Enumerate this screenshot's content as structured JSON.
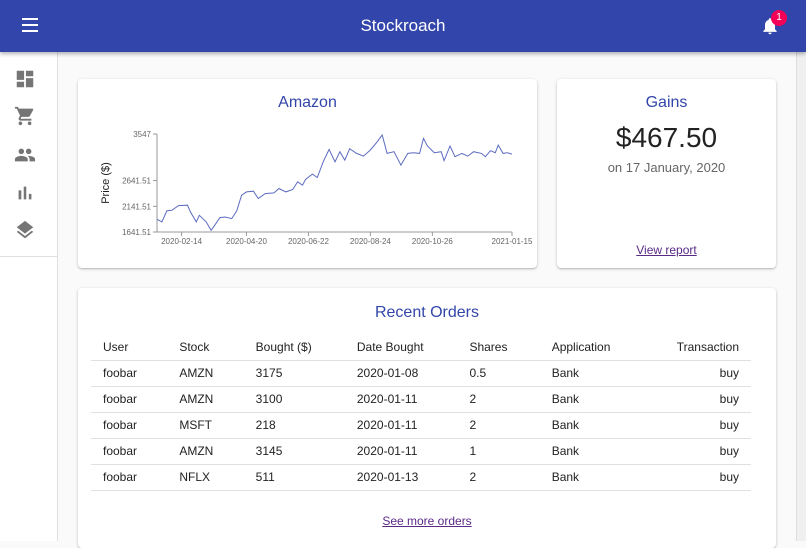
{
  "app": {
    "title": "Stockroach",
    "notification_count": "1",
    "accent": "#3245aa",
    "badge_color": "#f50057"
  },
  "sidebar": {
    "items": [
      {
        "icon": "dashboard-icon"
      },
      {
        "icon": "shopping-cart-icon"
      },
      {
        "icon": "people-icon"
      },
      {
        "icon": "bar-chart-icon"
      },
      {
        "icon": "layers-icon"
      }
    ]
  },
  "chart_card": {
    "title": "Amazon"
  },
  "gains": {
    "title": "Gains",
    "value": "$467.50",
    "date": "on 17 January, 2020",
    "link": "View report"
  },
  "orders": {
    "title": "Recent Orders",
    "columns": [
      "User",
      "Stock",
      "Bought ($)",
      "Date Bought",
      "Shares",
      "Application",
      "Transaction"
    ],
    "rows": [
      [
        "foobar",
        "AMZN",
        "3175",
        "2020-01-08",
        "0.5",
        "Bank",
        "buy"
      ],
      [
        "foobar",
        "AMZN",
        "3100",
        "2020-01-11",
        "2",
        "Bank",
        "buy"
      ],
      [
        "foobar",
        "MSFT",
        "218",
        "2020-01-11",
        "2",
        "Bank",
        "buy"
      ],
      [
        "foobar",
        "AMZN",
        "3145",
        "2020-01-11",
        "1",
        "Bank",
        "buy"
      ],
      [
        "foobar",
        "NFLX",
        "511",
        "2020-01-13",
        "2",
        "Bank",
        "buy"
      ]
    ],
    "link": "See more orders"
  },
  "chart_data": {
    "type": "line",
    "title": "Amazon",
    "xlabel": "",
    "ylabel": "Price ($)",
    "ylim": [
      1641.51,
      3547
    ],
    "yticks": [
      "1641.51",
      "2141.51",
      "2641.51",
      "3547"
    ],
    "xticks": [
      "2020-02-14",
      "2020-04-20",
      "2020-06-22",
      "2020-08-24",
      "2020-10-26",
      "2021-01-15"
    ],
    "color": "#5c6bc0",
    "grid": false,
    "x": [
      "2020-01-20",
      "2020-01-25",
      "2020-01-30",
      "2020-02-04",
      "2020-02-11",
      "2020-02-20",
      "2020-02-23",
      "2020-02-29",
      "2020-03-03",
      "2020-03-10",
      "2020-03-15",
      "2020-03-18",
      "2020-03-24",
      "2020-03-29",
      "2020-04-05",
      "2020-04-10",
      "2020-04-15",
      "2020-04-20",
      "2020-04-27",
      "2020-05-02",
      "2020-05-09",
      "2020-05-18",
      "2020-05-23",
      "2020-05-30",
      "2020-06-06",
      "2020-06-11",
      "2020-06-16",
      "2020-06-19",
      "2020-06-26",
      "2020-07-01",
      "2020-07-07",
      "2020-07-13",
      "2020-07-19",
      "2020-07-24",
      "2020-07-29",
      "2020-08-03",
      "2020-08-10",
      "2020-08-17",
      "2020-08-24",
      "2020-08-31",
      "2020-09-05",
      "2020-09-10",
      "2020-09-17",
      "2020-09-24",
      "2020-10-01",
      "2020-10-07",
      "2020-10-13",
      "2020-10-17",
      "2020-10-21",
      "2020-10-28",
      "2020-11-04",
      "2020-11-07",
      "2020-11-13",
      "2020-11-18",
      "2020-11-25",
      "2020-12-01",
      "2020-12-07",
      "2020-12-15",
      "2020-12-19",
      "2020-12-24",
      "2020-12-29",
      "2021-01-01",
      "2021-01-06",
      "2021-01-10",
      "2021-01-15"
    ],
    "y": [
      1889,
      1837,
      2051,
      2064,
      2155,
      2162,
      2032,
      1837,
      1967,
      1837,
      1674,
      1752,
      1921,
      1934,
      1902,
      2051,
      2357,
      2422,
      2435,
      2292,
      2389,
      2402,
      2487,
      2422,
      2467,
      2617,
      2552,
      2662,
      2767,
      2702,
      3007,
      3248,
      3007,
      3202,
      3040,
      3261,
      3170,
      3118,
      3235,
      3397,
      3527,
      3170,
      3202,
      2942,
      3170,
      3183,
      3170,
      3462,
      3313,
      3183,
      3202,
      3027,
      3313,
      3105,
      3170,
      3118,
      3202,
      3170,
      3105,
      3222,
      3183,
      3332,
      3170,
      3183,
      3157
    ]
  }
}
